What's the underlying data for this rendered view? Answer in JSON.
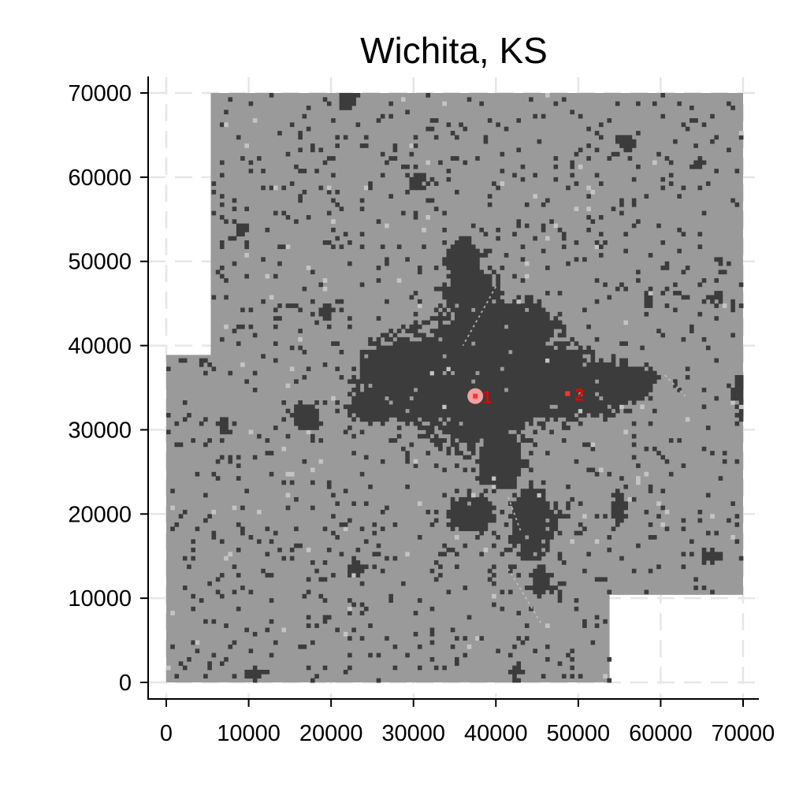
{
  "chart_data": {
    "type": "heatmap",
    "title": "Wichita, KS",
    "xlabel": "",
    "ylabel": "",
    "xlim": [
      0,
      70000
    ],
    "ylim": [
      0,
      70000
    ],
    "x_ticks": [
      "0",
      "10000",
      "20000",
      "30000",
      "40000",
      "50000",
      "60000",
      "70000"
    ],
    "y_ticks": [
      "0",
      "10000",
      "20000",
      "30000",
      "40000",
      "50000",
      "60000",
      "70000"
    ],
    "grid": true,
    "legend": "none",
    "cell_size": 500,
    "colors": {
      "background_cells": "#9a9a9a",
      "developed_cells": "#3c3c3c",
      "light_cells": "#c4c4c4",
      "center_marker": "#ff3333",
      "center_halo": "#f4a0a0",
      "grid": "#e6e6e6"
    },
    "study_area": [
      [
        5400,
        70000
      ],
      [
        70000,
        70000
      ],
      [
        70000,
        10400
      ],
      [
        53800,
        10400
      ],
      [
        53800,
        0
      ],
      [
        0,
        0
      ],
      [
        0,
        38900
      ],
      [
        5400,
        38900
      ]
    ],
    "dense_clusters": [
      {
        "x": 38000,
        "y": 36000,
        "rx": 8500,
        "ry": 7000
      },
      {
        "x": 29000,
        "y": 36000,
        "rx": 5000,
        "ry": 4500
      },
      {
        "x": 47000,
        "y": 35500,
        "rx": 5500,
        "ry": 4000
      },
      {
        "x": 52000,
        "y": 35000,
        "rx": 4500,
        "ry": 3000
      },
      {
        "x": 42500,
        "y": 42000,
        "rx": 4500,
        "ry": 3000
      },
      {
        "x": 37000,
        "y": 46000,
        "rx": 3000,
        "ry": 3000
      },
      {
        "x": 36000,
        "y": 50500,
        "rx": 2000,
        "ry": 1800
      },
      {
        "x": 44500,
        "y": 19000,
        "rx": 2500,
        "ry": 3500
      },
      {
        "x": 37000,
        "y": 20000,
        "rx": 2500,
        "ry": 2000
      },
      {
        "x": 45500,
        "y": 12000,
        "rx": 1200,
        "ry": 1500
      },
      {
        "x": 40500,
        "y": 26500,
        "rx": 2500,
        "ry": 3500
      },
      {
        "x": 25000,
        "y": 33000,
        "rx": 2500,
        "ry": 2000
      },
      {
        "x": 17000,
        "y": 31500,
        "rx": 1500,
        "ry": 1500
      },
      {
        "x": 56500,
        "y": 35500,
        "rx": 2500,
        "ry": 2000
      },
      {
        "x": 30500,
        "y": 59500,
        "rx": 1000,
        "ry": 800
      },
      {
        "x": 22000,
        "y": 69000,
        "rx": 1000,
        "ry": 800
      },
      {
        "x": 56000,
        "y": 64000,
        "rx": 1000,
        "ry": 900
      },
      {
        "x": 64500,
        "y": 61500,
        "rx": 700,
        "ry": 700
      },
      {
        "x": 23000,
        "y": 13500,
        "rx": 1000,
        "ry": 1000
      },
      {
        "x": 66000,
        "y": 15000,
        "rx": 1000,
        "ry": 700
      },
      {
        "x": 10500,
        "y": 1000,
        "rx": 1000,
        "ry": 700
      },
      {
        "x": 42500,
        "y": 1500,
        "rx": 700,
        "ry": 800
      },
      {
        "x": 69500,
        "y": 34000,
        "rx": 800,
        "ry": 2500
      },
      {
        "x": 55000,
        "y": 21000,
        "rx": 800,
        "ry": 1800
      },
      {
        "x": 9000,
        "y": 54000,
        "rx": 700,
        "ry": 700
      },
      {
        "x": 19500,
        "y": 44000,
        "rx": 700,
        "ry": 800
      },
      {
        "x": 7000,
        "y": 30500,
        "rx": 700,
        "ry": 900
      },
      {
        "x": 58500,
        "y": 45500,
        "rx": 500,
        "ry": 1200
      },
      {
        "x": 67000,
        "y": 46000,
        "rx": 700,
        "ry": 600
      }
    ],
    "light_corridors": [
      {
        "x1": 40000,
        "y1": 47000,
        "x2": 36000,
        "y2": 40000
      },
      {
        "x1": 41500,
        "y1": 22000,
        "x2": 43000,
        "y2": 18000
      },
      {
        "x1": 41500,
        "y1": 13500,
        "x2": 45500,
        "y2": 7000
      },
      {
        "x1": 60500,
        "y1": 36500,
        "x2": 63000,
        "y2": 34000
      }
    ],
    "centers": [
      {
        "label": "1",
        "x": 37500,
        "y": 34000
      },
      {
        "label": "2",
        "x": 48700,
        "y": 34300
      }
    ]
  }
}
